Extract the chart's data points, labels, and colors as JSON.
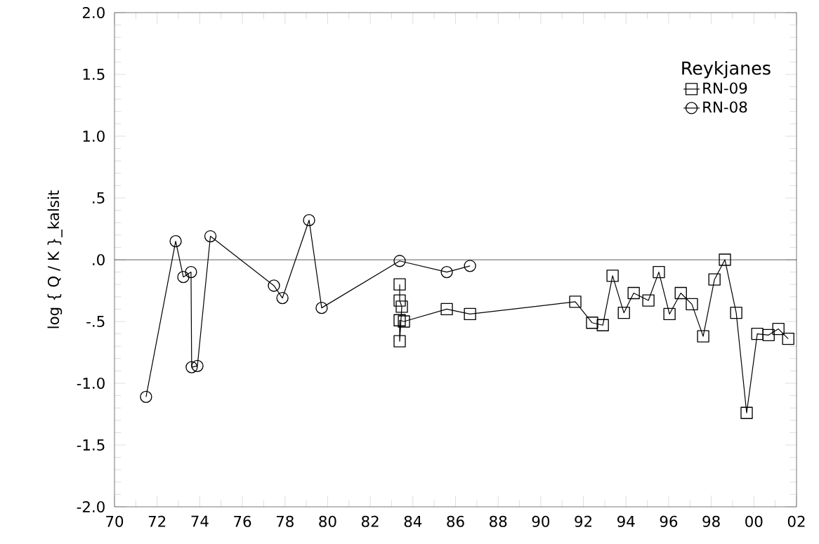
{
  "chart_data": {
    "type": "line",
    "ylabel": "log { Q / K }_kalsit",
    "legend_title": "Reykjanes",
    "legend": "top right",
    "grid": false,
    "xlim": [
      1970,
      2002
    ],
    "ylim": [
      -2.0,
      2.0
    ],
    "xticks": [
      {
        "value": 1970,
        "label": "70"
      },
      {
        "value": 1972,
        "label": "72"
      },
      {
        "value": 1974,
        "label": "74"
      },
      {
        "value": 1976,
        "label": "76"
      },
      {
        "value": 1978,
        "label": "78"
      },
      {
        "value": 1980,
        "label": "80"
      },
      {
        "value": 1982,
        "label": "82"
      },
      {
        "value": 1984,
        "label": "84"
      },
      {
        "value": 1986,
        "label": "86"
      },
      {
        "value": 1988,
        "label": "88"
      },
      {
        "value": 1990,
        "label": "90"
      },
      {
        "value": 1992,
        "label": "92"
      },
      {
        "value": 1994,
        "label": "94"
      },
      {
        "value": 1996,
        "label": "96"
      },
      {
        "value": 1998,
        "label": "98"
      },
      {
        "value": 2000,
        "label": "00"
      },
      {
        "value": 2002,
        "label": "02"
      }
    ],
    "yticks": [
      {
        "value": -2.0,
        "label": "-2.0"
      },
      {
        "value": -1.5,
        "label": "-1.5"
      },
      {
        "value": -1.0,
        "label": "-1.0"
      },
      {
        "value": -0.5,
        "label": "-.5"
      },
      {
        "value": 0.0,
        "label": ".0"
      },
      {
        "value": 0.5,
        "label": ".5"
      },
      {
        "value": 1.0,
        "label": "1.0"
      },
      {
        "value": 1.5,
        "label": "1.5"
      },
      {
        "value": 2.0,
        "label": "2.0"
      }
    ],
    "ref_lines": [
      {
        "axis": "y",
        "value": 0,
        "color": "#000000"
      }
    ],
    "series": [
      {
        "name": "RN-09",
        "color": "#000000",
        "marker": "square",
        "x": [
          1983.38,
          1983.38,
          1983.48,
          1983.38,
          1983.38,
          1983.58,
          1985.59,
          1986.68,
          1991.62,
          1992.41,
          1992.91,
          1993.37,
          1993.9,
          1994.36,
          1995.05,
          1995.54,
          1996.04,
          1996.57,
          1997.09,
          1997.62,
          1998.15,
          1998.64,
          1999.17,
          1999.66,
          2000.16,
          2000.69,
          2001.15,
          2001.61
        ],
        "values": [
          -0.2,
          -0.33,
          -0.38,
          -0.66,
          -0.49,
          -0.5,
          -0.4,
          -0.44,
          -0.34,
          -0.51,
          -0.53,
          -0.13,
          -0.43,
          -0.27,
          -0.33,
          -0.1,
          -0.44,
          -0.27,
          -0.36,
          -0.62,
          -0.16,
          0.0,
          -0.43,
          -1.24,
          -0.6,
          -0.61,
          -0.56,
          -0.64
        ]
      },
      {
        "name": "RN-08",
        "color": "#000000",
        "marker": "circle",
        "x": [
          1971.48,
          1972.87,
          1973.23,
          1973.59,
          1973.62,
          1973.89,
          1974.5,
          1977.48,
          1977.88,
          1979.13,
          1979.72,
          1983.38,
          1985.59,
          1986.68
        ],
        "values": [
          -1.11,
          0.15,
          -0.14,
          -0.1,
          -0.87,
          -0.86,
          0.19,
          -0.21,
          -0.31,
          0.32,
          -0.39,
          -0.01,
          -0.1,
          -0.05
        ]
      }
    ]
  }
}
